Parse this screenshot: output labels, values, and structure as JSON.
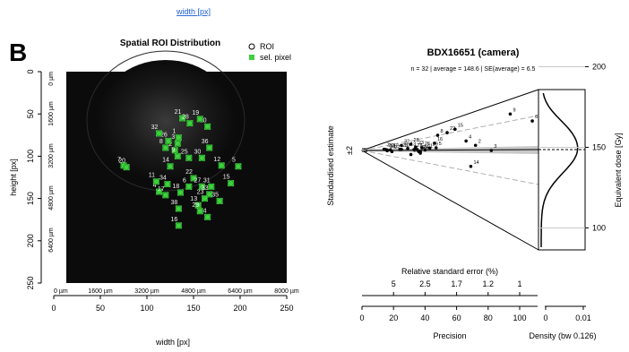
{
  "top_link": "width [px]",
  "panel_label": "B",
  "chart_data": [
    {
      "type": "scatter",
      "title": "Spatial ROI Distribution",
      "xlabel": "width [px]",
      "ylabel": "height [px]",
      "xlim": [
        0,
        250
      ],
      "ylim": [
        250,
        0
      ],
      "x_ticks": [
        "0",
        "50",
        "100",
        "150",
        "200",
        "250"
      ],
      "y_ticks": [
        "0",
        "50",
        "100",
        "150",
        "200",
        "250"
      ],
      "x_um_ticks": [
        "0 µm",
        "1600 µm",
        "3200 µm",
        "4800 µm",
        "6400 µm",
        "8000 µm"
      ],
      "y_um_ticks": [
        "0 µm",
        "1600 µm",
        "3200 µm",
        "4800 µm",
        "6400 µm"
      ],
      "legend": {
        "position": "top-right",
        "items": [
          "ROI",
          "sel. pixel"
        ]
      },
      "colors": {
        "background": "#0b0b0b",
        "pixel": "#3fcf3f"
      },
      "points": [
        {
          "id": "1",
          "x": 134,
          "y": 78
        },
        {
          "id": "2",
          "x": 130,
          "y": 93
        },
        {
          "id": "3",
          "x": 133,
          "y": 85
        },
        {
          "id": "4",
          "x": 113,
          "y": 142
        },
        {
          "id": "5",
          "x": 198,
          "y": 112
        },
        {
          "id": "6",
          "x": 145,
          "y": 136
        },
        {
          "id": "7",
          "x": 75,
          "y": 111
        },
        {
          "id": "8",
          "x": 120,
          "y": 90
        },
        {
          "id": "9",
          "x": 133,
          "y": 100
        },
        {
          "id": "10",
          "x": 165,
          "y": 65
        },
        {
          "id": "11",
          "x": 110,
          "y": 130
        },
        {
          "id": "12",
          "x": 180,
          "y": 111
        },
        {
          "id": "13",
          "x": 155,
          "y": 158
        },
        {
          "id": "14",
          "x": 125,
          "y": 112
        },
        {
          "id": "15",
          "x": 190,
          "y": 132
        },
        {
          "id": "16",
          "x": 134,
          "y": 182
        },
        {
          "id": "17",
          "x": 120,
          "y": 146
        },
        {
          "id": "18",
          "x": 136,
          "y": 143
        },
        {
          "id": "19",
          "x": 157,
          "y": 56
        },
        {
          "id": "20",
          "x": 78,
          "y": 113
        },
        {
          "id": "21",
          "x": 138,
          "y": 55
        },
        {
          "id": "22",
          "x": 150,
          "y": 126
        },
        {
          "id": "23",
          "x": 162,
          "y": 150
        },
        {
          "id": "24",
          "x": 165,
          "y": 172
        },
        {
          "id": "25",
          "x": 145,
          "y": 102
        },
        {
          "id": "26",
          "x": 123,
          "y": 82
        },
        {
          "id": "27",
          "x": 159,
          "y": 136
        },
        {
          "id": "28",
          "x": 146,
          "y": 61
        },
        {
          "id": "29",
          "x": 157,
          "y": 165
        },
        {
          "id": "30",
          "x": 159,
          "y": 102
        },
        {
          "id": "31",
          "x": 169,
          "y": 136
        },
        {
          "id": "32",
          "x": 113,
          "y": 73
        },
        {
          "id": "33",
          "x": 167,
          "y": 145
        },
        {
          "id": "34",
          "x": 122,
          "y": 133
        },
        {
          "id": "35",
          "x": 178,
          "y": 153
        },
        {
          "id": "36",
          "x": 167,
          "y": 90
        },
        {
          "id": "38",
          "x": 134,
          "y": 162
        }
      ]
    },
    {
      "type": "scatter",
      "title": "BDX16651 (camera)",
      "subtitle": "n = 32 | average = 148.6 | SE(average) = 6.5",
      "ylabel": "Standardised estimate",
      "y2label": "Equivalent dose [Gy]",
      "xlabel": "Precision",
      "top_axis_label": "Relative standard error (%)",
      "density_label": "Density (bw 0.126)",
      "y_marker": "±2",
      "x_ticks": [
        0,
        20,
        40,
        60,
        80,
        100
      ],
      "xlim": [
        0,
        110
      ],
      "rse_ticks": [
        "5",
        "2.5",
        "1.7",
        "1.2",
        "1"
      ],
      "rse_positions": [
        20,
        40,
        60,
        80,
        100
      ],
      "dose_ticks": [
        100,
        150,
        200
      ],
      "density_ticks": [
        "0",
        "0.01"
      ],
      "average_dose": 148.6,
      "points": [
        {
          "id": "1",
          "precision": 35,
          "dose": 150
        },
        {
          "id": "2",
          "precision": 72,
          "dose": 153
        },
        {
          "id": "3",
          "precision": 82,
          "dose": 148
        },
        {
          "id": "4",
          "precision": 66,
          "dose": 158
        },
        {
          "id": "5",
          "precision": 47,
          "dose": 152
        },
        {
          "id": "6",
          "precision": 108,
          "dose": 167
        },
        {
          "id": "7",
          "precision": 14,
          "dose": 153
        },
        {
          "id": "8",
          "precision": 48,
          "dose": 170
        },
        {
          "id": "9",
          "precision": 94,
          "dose": 175
        },
        {
          "id": "10",
          "precision": 25,
          "dose": 151
        },
        {
          "id": "11",
          "precision": 40,
          "dose": 149
        },
        {
          "id": "12",
          "precision": 18,
          "dose": 150
        },
        {
          "id": "13",
          "precision": 29,
          "dose": 153
        },
        {
          "id": "14",
          "precision": 69,
          "dose": 132
        },
        {
          "id": "15",
          "precision": 59,
          "dose": 173
        },
        {
          "id": "16",
          "precision": 46,
          "dose": 159
        },
        {
          "id": "17",
          "precision": 16,
          "dose": 150
        },
        {
          "id": "18",
          "precision": 37,
          "dose": 143
        },
        {
          "id": "19",
          "precision": 36,
          "dose": 146
        },
        {
          "id": "20",
          "precision": 15,
          "dose": 152
        },
        {
          "id": "21",
          "precision": 33,
          "dose": 150
        },
        {
          "id": "22",
          "precision": 54,
          "dose": 171
        },
        {
          "id": "23",
          "precision": 34,
          "dose": 155
        },
        {
          "id": "24",
          "precision": 37,
          "dose": 146
        },
        {
          "id": "25",
          "precision": 24,
          "dose": 151
        },
        {
          "id": "26",
          "precision": 38,
          "dose": 153
        },
        {
          "id": "27",
          "precision": 19,
          "dose": 144
        },
        {
          "id": "28",
          "precision": 31,
          "dose": 162
        },
        {
          "id": "29",
          "precision": 43,
          "dose": 152
        },
        {
          "id": "30",
          "precision": 16,
          "dose": 147
        },
        {
          "id": "31",
          "precision": 31,
          "dose": 139
        },
        {
          "id": "32",
          "precision": 25,
          "dose": 162
        }
      ]
    }
  ]
}
